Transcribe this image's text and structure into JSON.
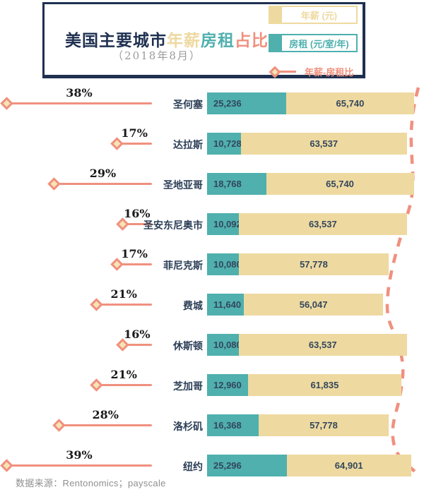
{
  "header": {
    "title_parts": [
      {
        "text": "美国主要城市",
        "color": "#1f3050"
      },
      {
        "text": "年薪",
        "color": "#eed9a0"
      },
      {
        "text": "房租",
        "color": "#4fb0ae"
      },
      {
        "text": "占比",
        "color": "#f0907e"
      }
    ],
    "subtitle": "（2018年8月）",
    "legend": [
      {
        "label": "年薪 (元)",
        "color": "#eed9a0",
        "type": "box"
      },
      {
        "label": "房租 (元/室/年)",
        "color": "#4fb0ae",
        "type": "box"
      },
      {
        "label": "年薪-房租比",
        "color": "#f0907e",
        "type": "diamond-line"
      }
    ]
  },
  "chart_data": {
    "type": "bar",
    "orientation": "horizontal",
    "title": "美国主要城市年薪房租占比",
    "subtitle": "（2018年8月）",
    "categories": [
      "圣何塞",
      "达拉斯",
      "圣地亚哥",
      "圣安东尼奥市",
      "菲尼克斯",
      "费城",
      "休斯顿",
      "芝加哥",
      "洛杉矶",
      "纽约"
    ],
    "series": [
      {
        "name": "房租 (元/室/年)",
        "color": "#4fb0ae",
        "values": [
          25236,
          10728,
          18768,
          10092,
          10080,
          11640,
          10080,
          12960,
          16368,
          25296
        ]
      },
      {
        "name": "年薪 (元)",
        "color": "#eed9a0",
        "values": [
          65740,
          63537,
          65740,
          63537,
          57778,
          56047,
          63537,
          61835,
          57778,
          64901
        ]
      }
    ],
    "ratio_series": {
      "name": "年薪-房租比",
      "unit": "%",
      "color": "#f0907e",
      "values": [
        38,
        17,
        29,
        16,
        17,
        21,
        16,
        21,
        28,
        39
      ]
    },
    "legend_position": "top-right",
    "grid": false,
    "notes": "bar length = annual salary; teal segment = annual rent share of salary; diamond line = rent/salary ratio, larger ratio further left; dashed curve traces bar ends"
  },
  "footer": {
    "source": "数据来源：Rentonomics；payscale"
  }
}
